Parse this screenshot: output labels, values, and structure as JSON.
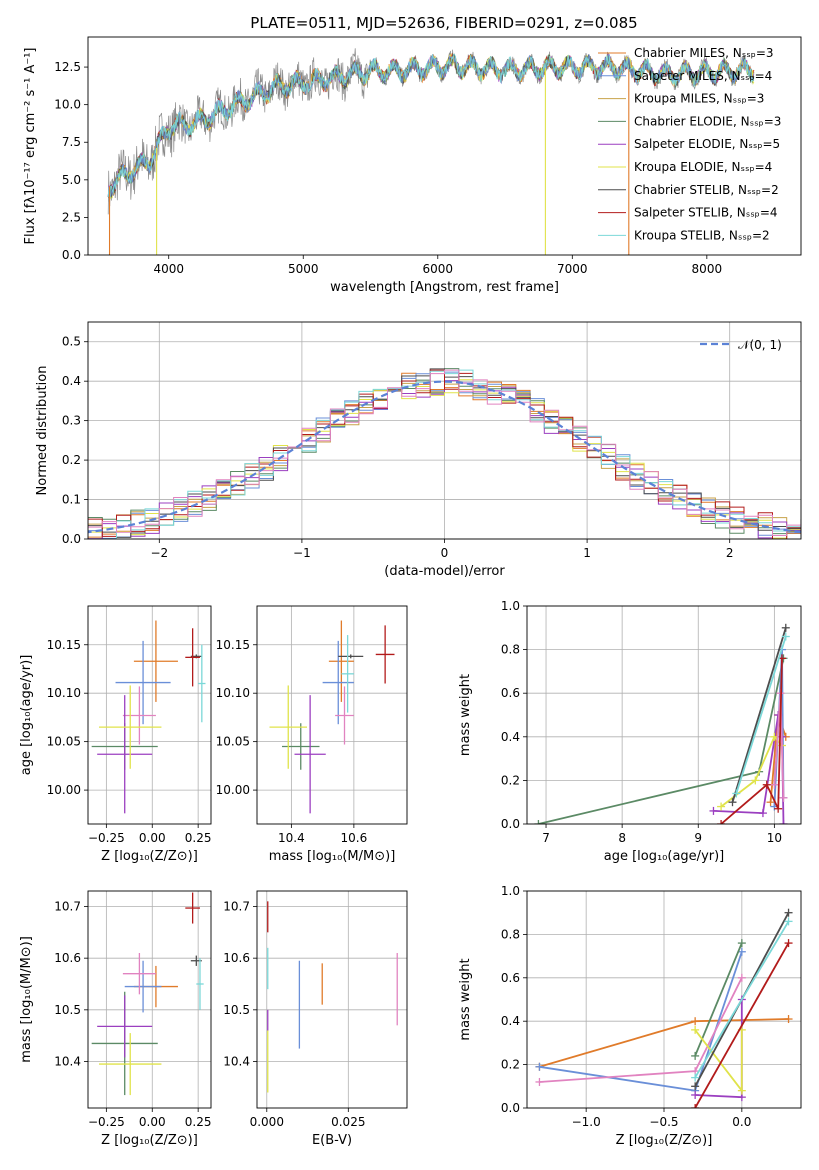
{
  "title": "PLATE=0511, MJD=52636, FIBERID=0291, z=0.085",
  "colors": [
    "#e07b2a",
    "#6a8fd8",
    "#c8a24a",
    "#5b8a65",
    "#9b3fc0",
    "#e0e34a",
    "#4d4d4d",
    "#b21b1b",
    "#7bd8d8",
    "#8a8a8a",
    "#e183c0"
  ],
  "chart_data": [
    {
      "id": "spectrum",
      "type": "line",
      "xlabel": "wavelength [Angstrom, rest frame]",
      "ylabel": "Flux [fλ10⁻¹⁷ erg cm⁻² s⁻¹ A⁻¹]",
      "xlim": [
        3400,
        8700
      ],
      "ylim": [
        0,
        14.5
      ],
      "xticks": [
        4000,
        5000,
        6000,
        7000,
        8000
      ],
      "yticks": [
        0.0,
        2.5,
        5.0,
        7.5,
        10.0,
        12.5
      ],
      "grid": false,
      "legend_position": "right",
      "spectrum_anchor_points": {
        "x": [
          3550,
          3700,
          3850,
          4000,
          4200,
          4500,
          4800,
          5100,
          5500,
          5800,
          6100,
          6500,
          6900,
          7300,
          7700,
          8100,
          8350
        ],
        "y": [
          4.5,
          5.5,
          6.2,
          8.5,
          8.8,
          10.0,
          11.2,
          11.6,
          12.2,
          12.3,
          12.6,
          12.3,
          12.5,
          12.5,
          12.0,
          12.2,
          12.3
        ]
      },
      "legend": [
        "Chabrier MILES, N_SSP=3",
        "Salpeter MILES, N_SSP=4",
        "Kroupa MILES, N_SSP=3",
        "Chabrier ELODIE, N_SSP=3",
        "Salpeter ELODIE, N_SSP=5",
        "Kroupa ELODIE, N_SSP=4",
        "Chabrier STELIB, N_SSP=2",
        "Salpeter STELIB, N_SSP=4",
        "Kroupa STELIB, N_SSP=2"
      ]
    },
    {
      "id": "residuals",
      "type": "line",
      "xlabel": "(data-model)/error",
      "ylabel": "Normed distribution",
      "xlim": [
        -2.5,
        2.5
      ],
      "ylim": [
        0,
        0.55
      ],
      "xticks": [
        -2,
        -1,
        0,
        1,
        2
      ],
      "yticks": [
        0.0,
        0.1,
        0.2,
        0.3,
        0.4,
        0.5
      ],
      "grid": true,
      "legend": [
        "𝒩(0, 1)"
      ],
      "legend_position": "top-right",
      "series": [
        {
          "name": "𝒩(0, 1)",
          "mean": 0,
          "sigma": 1
        }
      ],
      "histogram_bin_width": 0.1
    },
    {
      "id": "age-vs-Z",
      "type": "scatter",
      "xlabel": "Z [log₁₀(Z/Z⊙)]",
      "ylabel": "age  [log₁₀(age/yr)]",
      "xlim": [
        -0.35,
        0.32
      ],
      "ylim": [
        9.965,
        10.19
      ],
      "xticks": [
        -0.25,
        0.0,
        0.25
      ],
      "xtick_labels": [
        "−0.25",
        "0.00",
        "0.25"
      ],
      "yticks": [
        10.0,
        10.05,
        10.1,
        10.15
      ],
      "ytick_labels": [
        "10.00",
        "10.05",
        "10.10",
        "10.15"
      ],
      "grid": true,
      "points": [
        {
          "c": 0,
          "x": 0.02,
          "xerr": 0.12,
          "y": 10.133,
          "yerr": 0.042
        },
        {
          "c": 1,
          "x": -0.05,
          "xerr": 0.15,
          "y": 10.111,
          "yerr": 0.043
        },
        {
          "c": 10,
          "x": -0.07,
          "xerr": 0.09,
          "y": 10.077,
          "yerr": 0.03
        },
        {
          "c": 3,
          "x": -0.15,
          "xerr": 0.18,
          "y": 10.045,
          "yerr": 0.024
        },
        {
          "c": 4,
          "x": -0.15,
          "xerr": 0.15,
          "y": 10.037,
          "yerr": 0.061
        },
        {
          "c": 5,
          "x": -0.12,
          "xerr": 0.17,
          "y": 10.065,
          "yerr": 0.043
        },
        {
          "c": 6,
          "x": 0.24,
          "xerr": 0.03,
          "y": 10.138,
          "yerr": 0.002
        },
        {
          "c": 7,
          "x": 0.22,
          "xerr": 0.04,
          "y": 10.137,
          "yerr": 0.03
        },
        {
          "c": 8,
          "x": 0.27,
          "xerr": 0.02,
          "y": 10.11,
          "yerr": 0.04
        }
      ]
    },
    {
      "id": "age-vs-mass",
      "type": "scatter",
      "xlabel": "mass [log₁₀(M/M⊙)]",
      "ylabel": "",
      "xlim": [
        10.29,
        10.77
      ],
      "ylim": [
        9.965,
        10.19
      ],
      "xticks": [
        10.4,
        10.6
      ],
      "xtick_labels": [
        "10.4",
        "10.6"
      ],
      "yticks": [
        10.0,
        10.05,
        10.1,
        10.15
      ],
      "ytick_labels": [
        "10.00",
        "10.05",
        "10.10",
        "10.15"
      ],
      "grid": true,
      "points": [
        {
          "c": 0,
          "x": 10.56,
          "xerr": 0.04,
          "y": 10.133,
          "yerr": 0.042
        },
        {
          "c": 1,
          "x": 10.55,
          "xerr": 0.05,
          "y": 10.111,
          "yerr": 0.043
        },
        {
          "c": 10,
          "x": 10.57,
          "xerr": 0.03,
          "y": 10.077,
          "yerr": 0.03
        },
        {
          "c": 3,
          "x": 10.43,
          "xerr": 0.06,
          "y": 10.045,
          "yerr": 0.024
        },
        {
          "c": 4,
          "x": 10.46,
          "xerr": 0.05,
          "y": 10.037,
          "yerr": 0.061
        },
        {
          "c": 5,
          "x": 10.39,
          "xerr": 0.06,
          "y": 10.065,
          "yerr": 0.043
        },
        {
          "c": 6,
          "x": 10.59,
          "xerr": 0.04,
          "y": 10.138,
          "yerr": 0.002
        },
        {
          "c": 7,
          "x": 10.7,
          "xerr": 0.03,
          "y": 10.14,
          "yerr": 0.03
        },
        {
          "c": 8,
          "x": 10.58,
          "xerr": 0.02,
          "y": 10.12,
          "yerr": 0.04
        }
      ]
    },
    {
      "id": "weight-vs-age",
      "type": "line",
      "xlabel": "age  [log₁₀(age/yr)]",
      "ylabel": "mass weight",
      "xlim": [
        6.75,
        10.35
      ],
      "ylim": [
        0,
        1.0
      ],
      "xticks": [
        7,
        8,
        9,
        10
      ],
      "xtick_labels": [
        "7",
        "8",
        "9",
        "10"
      ],
      "yticks": [
        0.0,
        0.2,
        0.4,
        0.6,
        0.8,
        1.0
      ],
      "ytick_labels": [
        "0.0",
        "0.2",
        "0.4",
        "0.6",
        "0.8",
        "1.0"
      ],
      "grid": true,
      "series": [
        {
          "c": 3,
          "points": [
            [
              6.9,
              0.0
            ],
            [
              9.8,
              0.24
            ],
            [
              10.12,
              0.76
            ]
          ]
        },
        {
          "c": 0,
          "points": [
            [
              9.95,
              0.1
            ],
            [
              10.05,
              0.5
            ],
            [
              10.15,
              0.4
            ]
          ]
        },
        {
          "c": 1,
          "points": [
            [
              10.0,
              0.08
            ],
            [
              10.1,
              0.8
            ],
            [
              10.12,
              0.12
            ]
          ]
        },
        {
          "c": 4,
          "points": [
            [
              9.2,
              0.06
            ],
            [
              9.85,
              0.05
            ],
            [
              10.05,
              0.5
            ],
            [
              10.1,
              0.4
            ],
            [
              10.12,
              0.0
            ]
          ]
        },
        {
          "c": 5,
          "points": [
            [
              9.3,
              0.08
            ],
            [
              9.75,
              0.2
            ],
            [
              10.0,
              0.4
            ],
            [
              10.1,
              0.36
            ]
          ]
        },
        {
          "c": 10,
          "points": [
            [
              10.0,
              0.18
            ],
            [
              10.08,
              0.6
            ],
            [
              10.12,
              0.12
            ]
          ]
        },
        {
          "c": 6,
          "points": [
            [
              9.45,
              0.1
            ],
            [
              10.15,
              0.9
            ]
          ]
        },
        {
          "c": 7,
          "points": [
            [
              9.3,
              0.0
            ],
            [
              9.9,
              0.18
            ],
            [
              10.05,
              0.07
            ],
            [
              10.1,
              0.76
            ]
          ]
        },
        {
          "c": 8,
          "points": [
            [
              9.5,
              0.14
            ],
            [
              10.15,
              0.86
            ]
          ]
        }
      ]
    },
    {
      "id": "mass-vs-Z",
      "type": "scatter",
      "xlabel": "Z [log₁₀(Z/Z⊙)]",
      "ylabel": "mass [log₁₀(M/M⊙)]",
      "xlim": [
        -0.35,
        0.32
      ],
      "ylim": [
        10.31,
        10.73
      ],
      "xticks": [
        -0.25,
        0.0,
        0.25
      ],
      "xtick_labels": [
        "−0.25",
        "0.00",
        "0.25"
      ],
      "yticks": [
        10.4,
        10.5,
        10.6,
        10.7
      ],
      "ytick_labels": [
        "10.4",
        "10.5",
        "10.6",
        "10.7"
      ],
      "grid": true,
      "points": [
        {
          "c": 0,
          "x": 0.02,
          "xerr": 0.12,
          "y": 10.545,
          "yerr": 0.04
        },
        {
          "c": 1,
          "x": -0.05,
          "xerr": 0.1,
          "y": 10.545,
          "yerr": 0.05
        },
        {
          "c": 10,
          "x": -0.07,
          "xerr": 0.09,
          "y": 10.57,
          "yerr": 0.04
        },
        {
          "c": 3,
          "x": -0.15,
          "xerr": 0.18,
          "y": 10.435,
          "yerr": 0.1
        },
        {
          "c": 4,
          "x": -0.15,
          "xerr": 0.15,
          "y": 10.468,
          "yerr": 0.06
        },
        {
          "c": 5,
          "x": -0.12,
          "xerr": 0.17,
          "y": 10.395,
          "yerr": 0.06
        },
        {
          "c": 6,
          "x": 0.24,
          "xerr": 0.03,
          "y": 10.595,
          "yerr": 0.01
        },
        {
          "c": 7,
          "x": 0.22,
          "xerr": 0.04,
          "y": 10.697,
          "yerr": 0.03
        },
        {
          "c": 8,
          "x": 0.26,
          "xerr": 0.02,
          "y": 10.55,
          "yerr": 0.05
        }
      ]
    },
    {
      "id": "mass-vs-EBV",
      "type": "scatter",
      "xlabel": "E(B-V)",
      "ylabel": "",
      "xlim": [
        -0.003,
        0.043
      ],
      "ylim": [
        10.31,
        10.73
      ],
      "xticks": [
        0.0,
        0.025
      ],
      "xtick_labels": [
        "0.000",
        "0.025"
      ],
      "yticks": [
        10.4,
        10.5,
        10.6,
        10.7
      ],
      "ytick_labels": [
        "10.4",
        "10.5",
        "10.6",
        "10.7"
      ],
      "grid": true,
      "points": [
        {
          "c": 7,
          "x": 0.0003,
          "xerr": 0,
          "y": 10.68,
          "yerr": 0.03
        },
        {
          "c": 8,
          "x": 0.0003,
          "xerr": 0,
          "y": 10.58,
          "yerr": 0.04
        },
        {
          "c": 4,
          "x": 0.0003,
          "xerr": 0,
          "y": 10.48,
          "yerr": 0.02
        },
        {
          "c": 5,
          "x": 0.0003,
          "xerr": 0,
          "y": 10.4,
          "yerr": 0.06
        },
        {
          "c": 1,
          "x": 0.01,
          "xerr": 0,
          "y": 10.51,
          "yerr": 0.085
        },
        {
          "c": 0,
          "x": 0.017,
          "xerr": 0,
          "y": 10.55,
          "yerr": 0.04
        },
        {
          "c": 10,
          "x": 0.04,
          "xerr": 0,
          "y": 10.54,
          "yerr": 0.07
        }
      ]
    },
    {
      "id": "weight-vs-Z",
      "type": "line",
      "xlabel": "Z [log₁₀(Z/Z⊙)]",
      "ylabel": "mass weight",
      "xlim": [
        -1.38,
        0.38
      ],
      "ylim": [
        0,
        1.0
      ],
      "xticks": [
        -1.0,
        -0.5,
        0.0
      ],
      "xtick_labels": [
        "−1.0",
        "−0.5",
        "0.0"
      ],
      "yticks": [
        0.0,
        0.2,
        0.4,
        0.6,
        0.8,
        1.0
      ],
      "ytick_labels": [
        "0.0",
        "0.2",
        "0.4",
        "0.6",
        "0.8",
        "1.0"
      ],
      "grid": true,
      "series": [
        {
          "c": 0,
          "points": [
            [
              -1.3,
              0.19
            ],
            [
              -0.3,
              0.4
            ],
            [
              0.3,
              0.41
            ]
          ]
        },
        {
          "c": 1,
          "points": [
            [
              -1.3,
              0.19
            ],
            [
              -0.3,
              0.08
            ],
            [
              0.0,
              0.72
            ]
          ]
        },
        {
          "c": 10,
          "points": [
            [
              -1.3,
              0.12
            ],
            [
              -0.3,
              0.17
            ],
            [
              0.0,
              0.6
            ]
          ]
        },
        {
          "c": 3,
          "points": [
            [
              -0.3,
              0.24
            ],
            [
              0.0,
              0.76
            ]
          ]
        },
        {
          "c": 4,
          "points": [
            [
              -0.3,
              0.06
            ],
            [
              0.0,
              0.05
            ],
            [
              0.0,
              0.5
            ]
          ]
        },
        {
          "c": 5,
          "points": [
            [
              -0.3,
              0.36
            ],
            [
              0.0,
              0.08
            ],
            [
              0.0,
              0.36
            ]
          ]
        },
        {
          "c": 6,
          "points": [
            [
              -0.3,
              0.1
            ],
            [
              0.3,
              0.9
            ]
          ]
        },
        {
          "c": 7,
          "points": [
            [
              -0.3,
              0.0
            ],
            [
              0.3,
              0.76
            ]
          ]
        },
        {
          "c": 8,
          "points": [
            [
              -0.3,
              0.14
            ],
            [
              0.3,
              0.86
            ]
          ]
        }
      ]
    }
  ]
}
